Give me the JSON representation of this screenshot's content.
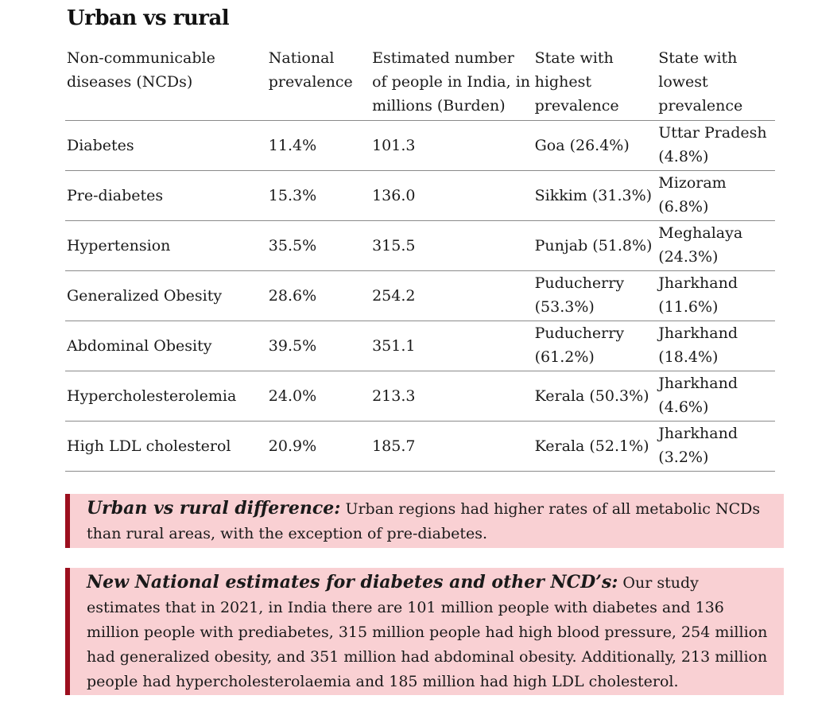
{
  "title": "Urban vs rural",
  "table": {
    "headers": [
      "Non-communicable diseases (NCDs)",
      "National prevalence",
      "Estimated number of people in India, in millions (Burden)",
      "State with highest prevalence",
      "State with lowest prevalence"
    ],
    "rows": [
      {
        "disease": "Diabetes",
        "prevalence": "11.4%",
        "burden": "101.3",
        "highest": "Goa (26.4%)",
        "lowest": "Uttar Pradesh (4.8%)"
      },
      {
        "disease": "Pre-diabetes",
        "prevalence": "15.3%",
        "burden": "136.0",
        "highest": "Sikkim (31.3%)",
        "lowest": "Mizoram (6.8%)"
      },
      {
        "disease": "Hypertension",
        "prevalence": "35.5%",
        "burden": "315.5",
        "highest": "Punjab (51.8%)",
        "lowest": "Meghalaya (24.3%)"
      },
      {
        "disease": "Generalized Obesity",
        "prevalence": "28.6%",
        "burden": "254.2",
        "highest": "Puducherry (53.3%)",
        "lowest": "Jharkhand (11.6%)"
      },
      {
        "disease": "Abdominal Obesity",
        "prevalence": "39.5%",
        "burden": "351.1",
        "highest": "Puducherry (61.2%)",
        "lowest": "Jharkhand (18.4%)"
      },
      {
        "disease": "Hypercholesterolemia",
        "prevalence": "24.0%",
        "burden": "213.3",
        "highest": "Kerala (50.3%)",
        "lowest": "Jharkhand (4.6%)"
      },
      {
        "disease": "High LDL cholesterol",
        "prevalence": "20.9%",
        "burden": "185.7",
        "highest": "Kerala (52.1%)",
        "lowest": "Jharkhand (3.2%)"
      }
    ]
  },
  "callouts": [
    {
      "lead": "Urban vs rural difference:",
      "text": "Urban regions had higher rates of all metabolic NCDs than rural areas, with the exception of pre-diabetes."
    },
    {
      "lead": "New National estimates for diabetes and other NCD’s:",
      "text": "Our study estimates that in 2021, in India there are 101 million people with diabetes and 136 million people with prediabetes, 315 million people had high blood pressure, 254 million had generalized obesity, and 351 million had abdominal obesity. Additionally, 213 million people had hypercholesterolaemia and 185 million had high LDL cholesterol."
    }
  ],
  "colors": {
    "callout_background": "#f9d0d3",
    "callout_border": "#9c0f1e",
    "rule": "#8a8a8a"
  }
}
